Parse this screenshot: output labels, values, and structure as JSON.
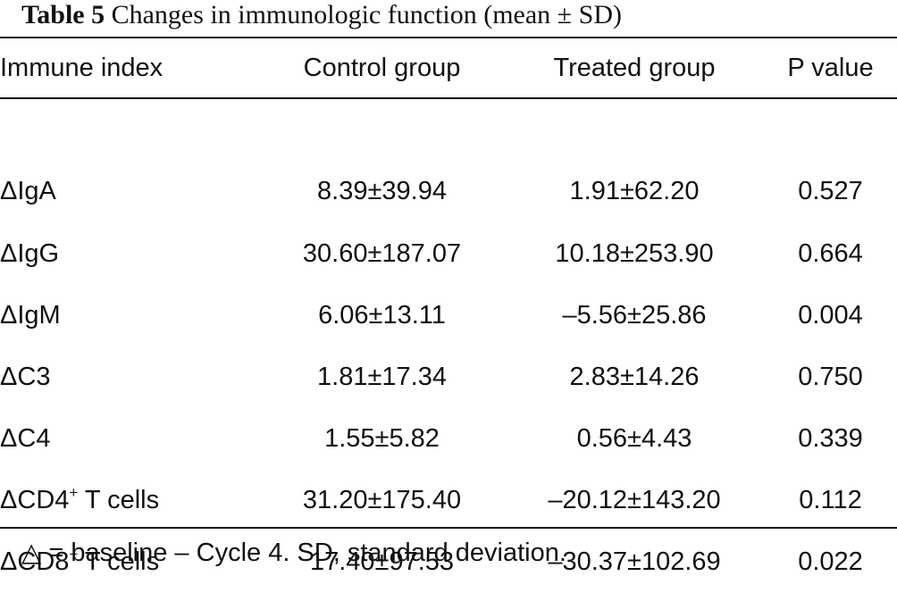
{
  "caption": {
    "label": "Table 5",
    "title": "Changes in immunologic function (mean ± SD)"
  },
  "table": {
    "headers": [
      "Immune index",
      "Control group",
      "Treated group",
      "P value"
    ],
    "rows": [
      {
        "index": "ΔIgA",
        "sup": "",
        "suffix": "",
        "control": "8.39±39.94",
        "treated": "1.91±62.20",
        "p": "0.527"
      },
      {
        "index": "ΔIgG",
        "sup": "",
        "suffix": "",
        "control": "30.60±187.07",
        "treated": "10.18±253.90",
        "p": "0.664"
      },
      {
        "index": "ΔIgM",
        "sup": "",
        "suffix": "",
        "control": "6.06±13.11",
        "treated": "–5.56±25.86",
        "p": "0.004"
      },
      {
        "index": "ΔC3",
        "sup": "",
        "suffix": "",
        "control": "1.81±17.34",
        "treated": "2.83±14.26",
        "p": "0.750"
      },
      {
        "index": "ΔC4",
        "sup": "",
        "suffix": "",
        "control": "1.55±5.82",
        "treated": "0.56±4.43",
        "p": "0.339"
      },
      {
        "index": "ΔCD4",
        "sup": "+",
        "suffix": " T cells",
        "control": "31.20±175.40",
        "treated": "–20.12±143.20",
        "p": "0.112"
      },
      {
        "index": "ΔCD8",
        "sup": "+",
        "suffix": " T cells",
        "control": "17.40±97.53",
        "treated": "–30.37±102.69",
        "p": "0.022"
      }
    ]
  },
  "footnote": "△ = baseline – Cycle 4. SD, standard deviation."
}
